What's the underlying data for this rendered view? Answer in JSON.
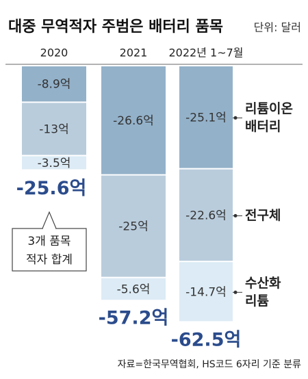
{
  "chart_data": {
    "type": "stacked-bar",
    "title": "대중 무역적자 주범은 배터리 품목",
    "unit": "단위: 달러",
    "categories": [
      "2020",
      "2021",
      "2022년 1~7월"
    ],
    "series": [
      {
        "name": "리튬이온 배터리",
        "color": "#93b1c9",
        "values": [
          -8.9,
          -26.6,
          -25.1
        ],
        "value_labels": [
          "-8.9억",
          "-26.6억",
          "-25.1억"
        ]
      },
      {
        "name": "전구체",
        "color": "#b9ccdc",
        "values": [
          -13,
          -25,
          -22.6
        ],
        "value_labels": [
          "-13억",
          "-25억",
          "-22.6억"
        ]
      },
      {
        "name": "수산화 리튬",
        "color": "#dcebf5",
        "values": [
          -3.5,
          -5.6,
          -14.7
        ],
        "value_labels": [
          "-3.5억",
          "-5.6억",
          "-14.7억"
        ]
      }
    ],
    "totals": {
      "color": "#2b4c8c",
      "values": [
        -25.6,
        -57.2,
        -62.5
      ],
      "value_labels": [
        "-25.6억",
        "-57.2억",
        "-62.5억"
      ]
    },
    "annotation": [
      "3개 품목",
      "적자 합계"
    ],
    "source": "자료=한국무역협회, HS코드 6자리 기준 분류"
  }
}
